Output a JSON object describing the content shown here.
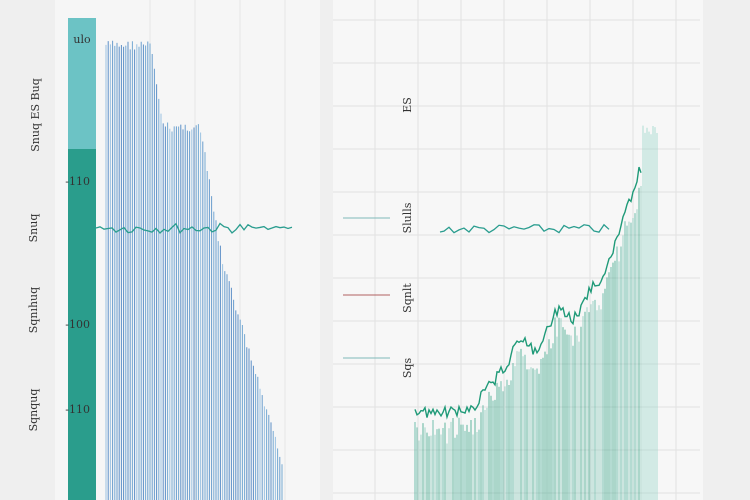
{
  "left_panel": {
    "top_label": "ulo",
    "axis_labels": [
      "-110",
      "-100",
      "-110"
    ],
    "side_labels": [
      "Snuq ES Buq",
      "Snuq",
      "Sqnıhuq",
      "Sqnquq"
    ]
  },
  "right_panel": {
    "side_labels": [
      "ES",
      "Slulls",
      "Sqnlt",
      "Sqs"
    ]
  }
}
